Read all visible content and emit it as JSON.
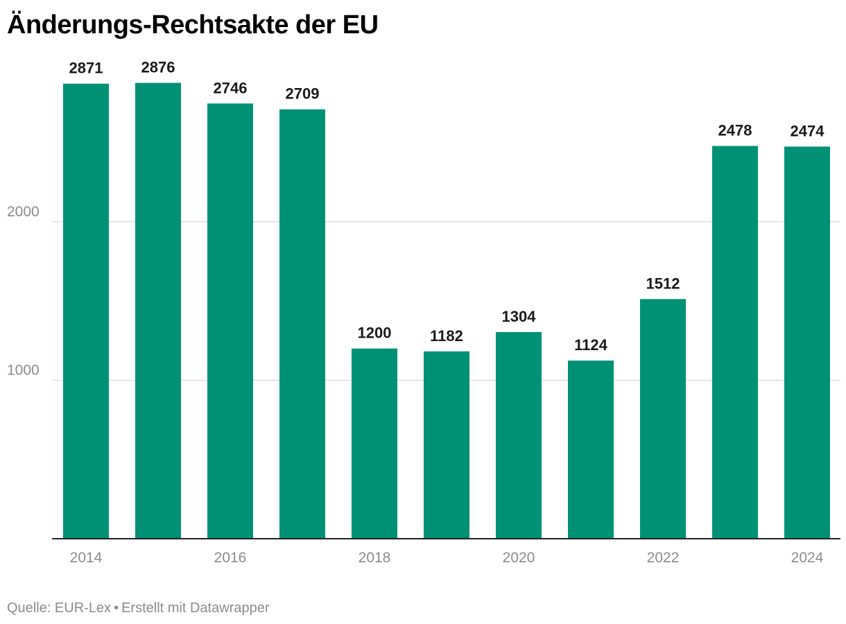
{
  "title": "Änderungs-Rechtsakte der EU",
  "footer": {
    "source": "Quelle: EUR-Lex",
    "separator": "•",
    "credit": "Erstellt mit Datawrapper"
  },
  "colors": {
    "bar": "#009175",
    "label": "#1a1a1a",
    "tick": "#8c8c8c",
    "grid": "#e0e0e0",
    "axis": "#222222"
  },
  "chart_data": {
    "type": "bar",
    "title": "Änderungs-Rechtsakte der EU",
    "categories": [
      "2014",
      "2015",
      "2016",
      "2017",
      "2018",
      "2019",
      "2020",
      "2021",
      "2022",
      "2023",
      "2024"
    ],
    "values": [
      2871,
      2876,
      2746,
      2709,
      1200,
      1182,
      1304,
      1124,
      1512,
      2478,
      2474
    ],
    "xticks": [
      "2014",
      "2016",
      "2018",
      "2020",
      "2022",
      "2024"
    ],
    "yticks": [
      1000,
      2000
    ],
    "ylim": [
      0,
      2876
    ],
    "xlabel": "",
    "ylabel": "",
    "grid": true,
    "legend": "none",
    "data_labels": true
  }
}
